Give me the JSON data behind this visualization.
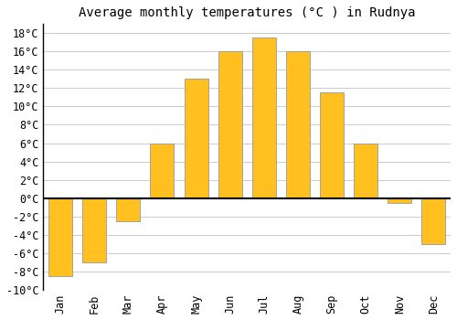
{
  "title": "Average monthly temperatures (°C ) in Rudnya",
  "months": [
    "Jan",
    "Feb",
    "Mar",
    "Apr",
    "May",
    "Jun",
    "Jul",
    "Aug",
    "Sep",
    "Oct",
    "Nov",
    "Dec"
  ],
  "values": [
    -8.5,
    -7.0,
    -2.5,
    6.0,
    13.0,
    16.0,
    17.5,
    16.0,
    11.5,
    6.0,
    -0.5,
    -5.0
  ],
  "bar_color": "#FFC020",
  "bar_edge_color": "#999999",
  "background_color": "#ffffff",
  "grid_color": "#cccccc",
  "ylim": [
    -10,
    19
  ],
  "yticks": [
    -10,
    -8,
    -6,
    -4,
    -2,
    0,
    2,
    4,
    6,
    8,
    10,
    12,
    14,
    16,
    18
  ],
  "zero_line_color": "#000000",
  "title_fontsize": 10,
  "tick_fontsize": 8.5,
  "font_family": "monospace"
}
